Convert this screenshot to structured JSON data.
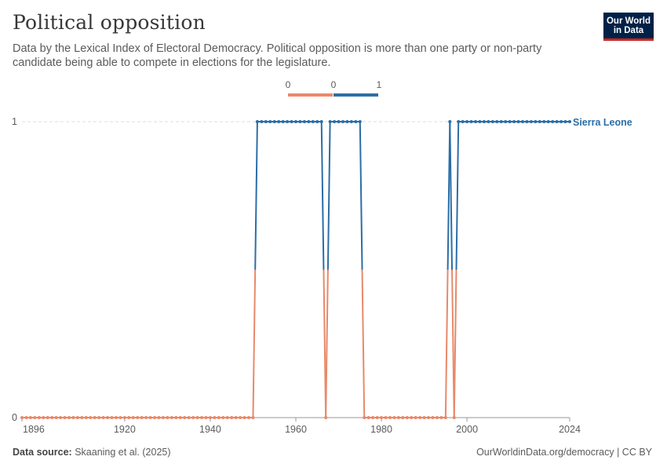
{
  "header": {
    "title": "Political opposition",
    "subtitle": "Data by the Lexical Index of Electoral Democracy. Political opposition is more than one party or non-party candidate being able to compete in elections for the legislature."
  },
  "logo": {
    "line1": "Our World",
    "line2": "in Data"
  },
  "footer": {
    "source_label": "Data source:",
    "source_text": " Skaaning et al. (2025)",
    "url_text": "OurWorldinData.org/democracy | CC BY"
  },
  "colors": {
    "zero": "#e8896a",
    "one": "#2c6ea6",
    "grid": "#dddddd",
    "axis": "#999999"
  },
  "chart_data": {
    "type": "line",
    "title": "Political opposition",
    "series_name": "Sierra Leone",
    "legend": {
      "bins": [
        "0",
        "0",
        "1"
      ],
      "colors": [
        "#e8896a",
        "#2c6ea6"
      ]
    },
    "x_ticks": [
      "1896",
      "1920",
      "1940",
      "1960",
      "1980",
      "2000",
      "2024"
    ],
    "y_ticks": [
      "0",
      "1"
    ],
    "xlim": [
      1896,
      2024
    ],
    "ylim": [
      0,
      1
    ],
    "ones_periods": [
      [
        1951,
        1966
      ],
      [
        1968,
        1975
      ],
      [
        1996,
        1996
      ],
      [
        1998,
        2024
      ]
    ],
    "series_start": 1896,
    "series_end": 2024
  }
}
